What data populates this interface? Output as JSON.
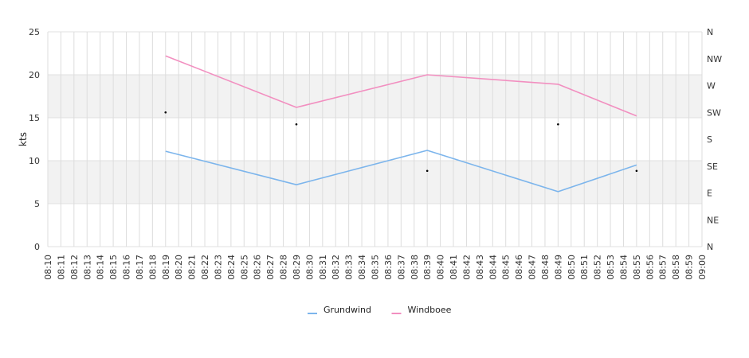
{
  "chart_data": {
    "type": "line",
    "title": "",
    "xlabel": "",
    "ylabel": "kts",
    "ylim": [
      0,
      25
    ],
    "y_ticks": [
      0,
      5,
      10,
      15,
      20,
      25
    ],
    "x_categories": [
      "08:10",
      "08:11",
      "08:12",
      "08:13",
      "08:14",
      "08:15",
      "08:16",
      "08:17",
      "08:18",
      "08:19",
      "08:20",
      "08:21",
      "08:22",
      "08:23",
      "08:24",
      "08:25",
      "08:26",
      "08:27",
      "08:28",
      "08:29",
      "08:30",
      "08:31",
      "08:32",
      "08:33",
      "08:34",
      "08:35",
      "08:36",
      "08:37",
      "08:38",
      "08:39",
      "08:40",
      "08:41",
      "08:42",
      "08:43",
      "08:44",
      "08:45",
      "08:46",
      "08:47",
      "08:48",
      "08:49",
      "08:50",
      "08:51",
      "08:52",
      "08:53",
      "08:54",
      "08:55",
      "08:56",
      "08:57",
      "08:58",
      "08:59",
      "09:00"
    ],
    "series": [
      {
        "name": "Grundwind",
        "color": "#7cb5ec",
        "points": [
          [
            "08:19",
            11.1
          ],
          [
            "08:29",
            7.2
          ],
          [
            "08:39",
            11.2
          ],
          [
            "08:49",
            6.4
          ],
          [
            "08:55",
            9.5
          ]
        ]
      },
      {
        "name": "Windboee",
        "color": "#f28fc0",
        "points": [
          [
            "08:19",
            22.2
          ],
          [
            "08:29",
            16.2
          ],
          [
            "08:39",
            20.0
          ],
          [
            "08:49",
            18.9
          ],
          [
            "08:55",
            15.2
          ]
        ]
      }
    ],
    "direction_axis": {
      "labels": [
        "N",
        "NE",
        "E",
        "SE",
        "S",
        "SW",
        "W",
        "NW",
        "N"
      ],
      "range": [
        0,
        360
      ]
    },
    "direction_points": [
      [
        "08:19",
        225
      ],
      [
        "08:29",
        205
      ],
      [
        "08:39",
        127
      ],
      [
        "08:49",
        205
      ],
      [
        "08:55",
        127
      ]
    ],
    "grid": true,
    "plot_bands": [
      [
        5,
        10
      ],
      [
        15,
        20
      ]
    ],
    "legend_position": "bottom-center"
  }
}
